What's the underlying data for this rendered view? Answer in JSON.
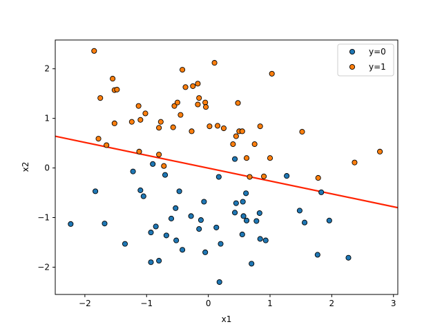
{
  "chart_data": {
    "type": "scatter",
    "title": "",
    "xlabel": "x1",
    "ylabel": "x2",
    "xlim": [
      -2.48,
      3.07
    ],
    "ylim": [
      -2.55,
      2.58
    ],
    "xticks": [
      -2,
      -1,
      0,
      1,
      2,
      3
    ],
    "yticks": [
      -2,
      -1,
      0,
      1,
      2
    ],
    "xtick_labels": [
      "−2",
      "−1",
      "0",
      "1",
      "2",
      "3"
    ],
    "ytick_labels": [
      "−2",
      "−1",
      "0",
      "1",
      "2"
    ],
    "grid": false,
    "legend_position": "top-right",
    "series": [
      {
        "name": "y=0",
        "color": "#1f77b4",
        "points": [
          [
            -2.23,
            -1.13
          ],
          [
            -1.83,
            -0.47
          ],
          [
            -1.68,
            -1.12
          ],
          [
            -1.35,
            -1.53
          ],
          [
            -1.22,
            -0.07
          ],
          [
            -1.1,
            -0.45
          ],
          [
            -1.05,
            -0.57
          ],
          [
            -0.93,
            -1.3
          ],
          [
            -0.93,
            -1.9
          ],
          [
            -0.9,
            0.08
          ],
          [
            -0.85,
            -1.18
          ],
          [
            -0.8,
            -1.87
          ],
          [
            -0.7,
            -0.14
          ],
          [
            -0.68,
            -1.36
          ],
          [
            -0.6,
            -1.02
          ],
          [
            -0.53,
            -0.81
          ],
          [
            -0.52,
            -1.46
          ],
          [
            -0.47,
            -0.47
          ],
          [
            -0.42,
            -1.65
          ],
          [
            -0.28,
            -0.97
          ],
          [
            -0.15,
            -1.23
          ],
          [
            -0.12,
            -1.05
          ],
          [
            -0.07,
            -0.68
          ],
          [
            -0.05,
            -1.7
          ],
          [
            0.13,
            -1.2
          ],
          [
            0.17,
            -0.18
          ],
          [
            0.2,
            -1.53
          ],
          [
            0.18,
            -2.3
          ],
          [
            0.43,
            0.18
          ],
          [
            0.43,
            -0.9
          ],
          [
            0.45,
            -0.71
          ],
          [
            0.55,
            -1.34
          ],
          [
            0.56,
            -0.68
          ],
          [
            0.57,
            -0.97
          ],
          [
            0.61,
            -0.51
          ],
          [
            0.62,
            -1.06
          ],
          [
            0.7,
            -1.93
          ],
          [
            0.78,
            -1.07
          ],
          [
            0.83,
            -0.91
          ],
          [
            0.84,
            -1.43
          ],
          [
            0.93,
            -1.46
          ],
          [
            1.27,
            -0.16
          ],
          [
            1.48,
            -0.86
          ],
          [
            1.56,
            -1.1
          ],
          [
            1.77,
            -1.75
          ],
          [
            1.83,
            -0.49
          ],
          [
            1.96,
            -1.06
          ],
          [
            2.27,
            -1.81
          ]
        ]
      },
      {
        "name": "y=1",
        "color": "#ff7f0e",
        "points": [
          [
            -1.85,
            2.36
          ],
          [
            -1.78,
            0.59
          ],
          [
            -1.75,
            1.41
          ],
          [
            -1.65,
            0.46
          ],
          [
            -1.55,
            1.8
          ],
          [
            -1.52,
            1.57
          ],
          [
            -1.52,
            0.9
          ],
          [
            -1.48,
            1.58
          ],
          [
            -1.24,
            0.93
          ],
          [
            -1.13,
            1.25
          ],
          [
            -1.1,
            0.97
          ],
          [
            -1.12,
            0.33
          ],
          [
            -1.02,
            1.1
          ],
          [
            -0.8,
            0.81
          ],
          [
            -0.8,
            0.27
          ],
          [
            -0.77,
            0.93
          ],
          [
            -0.72,
            0.04
          ],
          [
            -0.57,
            0.82
          ],
          [
            -0.55,
            1.25
          ],
          [
            -0.5,
            1.32
          ],
          [
            -0.45,
            1.07
          ],
          [
            -0.42,
            1.98
          ],
          [
            -0.37,
            1.63
          ],
          [
            -0.27,
            0.74
          ],
          [
            -0.25,
            1.65
          ],
          [
            -0.17,
            1.7
          ],
          [
            -0.17,
            1.28
          ],
          [
            -0.15,
            1.41
          ],
          [
            -0.05,
            1.32
          ],
          [
            -0.04,
            1.23
          ],
          [
            0.02,
            0.84
          ],
          [
            0.1,
            2.12
          ],
          [
            0.15,
            0.85
          ],
          [
            0.25,
            0.8
          ],
          [
            0.4,
            0.48
          ],
          [
            0.45,
            0.64
          ],
          [
            0.48,
            1.31
          ],
          [
            0.5,
            0.74
          ],
          [
            0.55,
            0.74
          ],
          [
            0.62,
            0.2
          ],
          [
            0.67,
            -0.18
          ],
          [
            0.75,
            0.48
          ],
          [
            0.84,
            0.84
          ],
          [
            0.9,
            -0.17
          ],
          [
            1.0,
            0.2
          ],
          [
            1.03,
            1.9
          ],
          [
            1.52,
            0.73
          ],
          [
            1.78,
            -0.2
          ],
          [
            2.37,
            0.11
          ],
          [
            2.78,
            0.33
          ]
        ]
      }
    ],
    "decision_boundary": {
      "color": "#ff2200",
      "points": [
        [
          -2.48,
          0.64
        ],
        [
          3.07,
          -0.8
        ]
      ]
    }
  }
}
